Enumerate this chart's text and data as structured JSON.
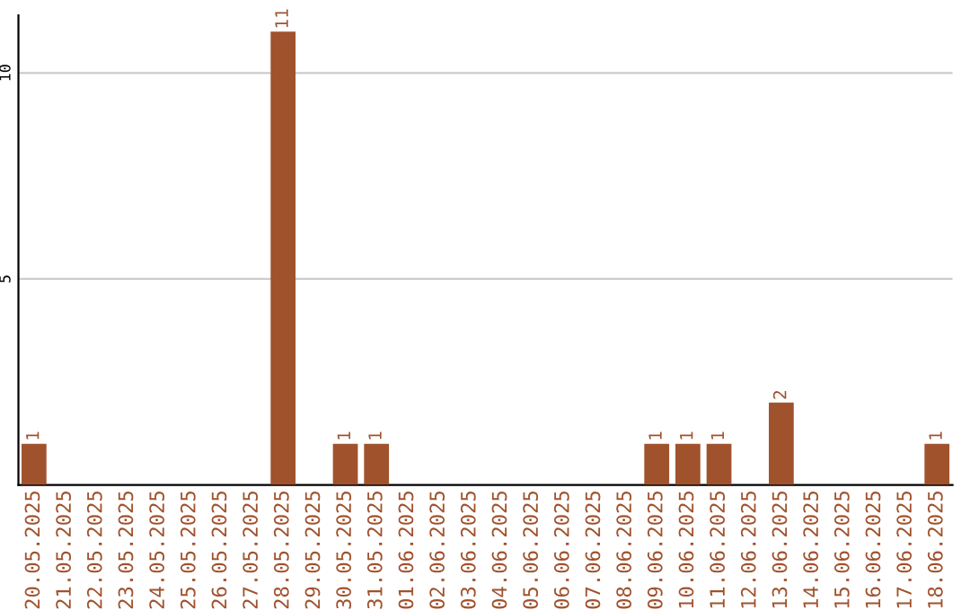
{
  "chart_data": {
    "type": "bar",
    "categories": [
      "20.05.2025",
      "21.05.2025",
      "22.05.2025",
      "23.05.2025",
      "24.05.2025",
      "25.05.2025",
      "26.05.2025",
      "27.05.2025",
      "28.05.2025",
      "29.05.2025",
      "30.05.2025",
      "31.05.2025",
      "01.06.2025",
      "02.06.2025",
      "03.06.2025",
      "04.06.2025",
      "05.06.2025",
      "06.06.2025",
      "07.06.2025",
      "08.06.2025",
      "09.06.2025",
      "10.06.2025",
      "11.06.2025",
      "12.06.2025",
      "13.06.2025",
      "14.06.2025",
      "15.06.2025",
      "16.06.2025",
      "17.06.2025",
      "18.06.2025"
    ],
    "values": [
      1,
      0,
      0,
      0,
      0,
      0,
      0,
      0,
      11,
      0,
      1,
      1,
      0,
      0,
      0,
      0,
      0,
      0,
      0,
      0,
      1,
      1,
      1,
      0,
      2,
      0,
      0,
      0,
      0,
      1
    ],
    "value_labels": [
      "1",
      null,
      null,
      null,
      null,
      null,
      null,
      null,
      "11",
      null,
      "1",
      "1",
      null,
      null,
      null,
      null,
      null,
      null,
      null,
      null,
      "1",
      "1",
      "1",
      null,
      "2",
      null,
      null,
      null,
      null,
      "1"
    ],
    "color": "#a0522d",
    "ylim": [
      0,
      11.4
    ],
    "yticks": [
      5,
      10
    ],
    "grid": "y"
  }
}
